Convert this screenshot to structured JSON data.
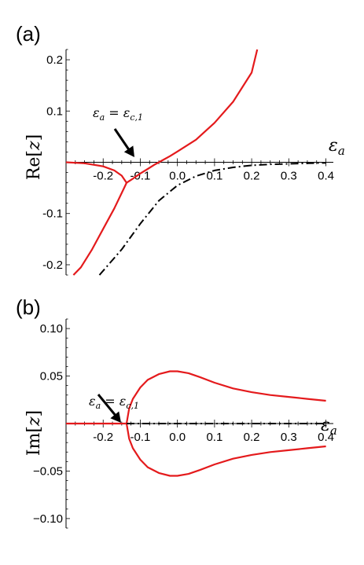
{
  "chart_data": [
    {
      "type": "line",
      "panel_label": "(a)",
      "ylabel": "Re[z]",
      "xlabel": "εa",
      "xlim": [
        -0.3,
        0.42
      ],
      "ylim": [
        -0.22,
        0.22
      ],
      "xticks": [
        -0.2,
        -0.1,
        0.0,
        0.1,
        0.2,
        0.3,
        0.4
      ],
      "xtick_labels": [
        "-0.2",
        "-0.1",
        "0.0",
        "0.1",
        "0.2",
        "0.3",
        "0.4"
      ],
      "yticks": [
        0.2,
        0.1,
        -0.1,
        -0.2
      ],
      "ytick_labels": [
        "0.2",
        "0.1",
        "-0.1",
        "-0.2"
      ],
      "annotation": {
        "text": "εa = εc,1",
        "x": -0.137,
        "y": 0.0
      },
      "series": [
        {
          "style": "solid",
          "color": "#e41a1c",
          "x": [
            -0.3,
            -0.25,
            -0.2,
            -0.17,
            -0.15,
            -0.137
          ],
          "y": [
            0.0,
            -0.002,
            -0.008,
            -0.016,
            -0.026,
            -0.04
          ]
        },
        {
          "style": "solid",
          "color": "#e41a1c",
          "x": [
            -0.137,
            -0.12,
            -0.1,
            -0.08,
            -0.06,
            -0.04,
            -0.02,
            0.0,
            0.05,
            0.1,
            0.15,
            0.2,
            0.215
          ],
          "y": [
            -0.04,
            -0.032,
            -0.022,
            -0.013,
            -0.004,
            0.004,
            0.012,
            0.021,
            0.044,
            0.077,
            0.118,
            0.175,
            0.22
          ]
        },
        {
          "style": "solid",
          "color": "#e41a1c",
          "x": [
            -0.137,
            -0.15,
            -0.17,
            -0.2,
            -0.23,
            -0.26,
            -0.28
          ],
          "y": [
            -0.04,
            -0.06,
            -0.09,
            -0.13,
            -0.17,
            -0.205,
            -0.22
          ]
        },
        {
          "style": "dashdot",
          "color": "#000000",
          "x": [
            -0.21,
            -0.15,
            -0.1,
            -0.05,
            0.0,
            0.05,
            0.1,
            0.15,
            0.2,
            0.25,
            0.3,
            0.35,
            0.4
          ],
          "y": [
            -0.22,
            -0.17,
            -0.12,
            -0.075,
            -0.045,
            -0.027,
            -0.016,
            -0.01,
            -0.006,
            -0.004,
            -0.003,
            -0.002,
            -0.001
          ]
        }
      ]
    },
    {
      "type": "line",
      "panel_label": "(b)",
      "ylabel": "Im[z]",
      "xlabel": "εa",
      "xlim": [
        -0.3,
        0.42
      ],
      "ylim": [
        -0.11,
        0.11
      ],
      "xticks": [
        -0.2,
        -0.1,
        0.0,
        0.1,
        0.2,
        0.3,
        0.4
      ],
      "xtick_labels": [
        "-0.2",
        "-0.1",
        "0.0",
        "0.1",
        "0.2",
        "0.3",
        "0.4"
      ],
      "yticks": [
        0.1,
        0.05,
        -0.05,
        -0.1
      ],
      "ytick_labels": [
        "0.10",
        "0.05",
        "−0.05",
        "−0.10"
      ],
      "annotation": {
        "text": "εa = εc,1",
        "x": -0.137,
        "y": 0.0
      },
      "series": [
        {
          "style": "solid",
          "color": "#e41a1c",
          "x": [
            -0.3,
            -0.137
          ],
          "y": [
            0.0,
            0.0
          ]
        },
        {
          "style": "solid",
          "color": "#e41a1c",
          "x": [
            -0.137,
            -0.13,
            -0.12,
            -0.1,
            -0.08,
            -0.05,
            -0.02,
            0.0,
            0.03,
            0.06,
            0.1,
            0.15,
            0.2,
            0.25,
            0.3,
            0.35,
            0.4
          ],
          "y": [
            0.0,
            0.016,
            0.026,
            0.038,
            0.046,
            0.052,
            0.055,
            0.055,
            0.053,
            0.049,
            0.043,
            0.037,
            0.033,
            0.03,
            0.028,
            0.026,
            0.024
          ]
        },
        {
          "style": "solid",
          "color": "#e41a1c",
          "x": [
            -0.137,
            -0.13,
            -0.12,
            -0.1,
            -0.08,
            -0.05,
            -0.02,
            0.0,
            0.03,
            0.06,
            0.1,
            0.15,
            0.2,
            0.25,
            0.3,
            0.35,
            0.4
          ],
          "y": [
            0.0,
            -0.016,
            -0.026,
            -0.038,
            -0.046,
            -0.052,
            -0.055,
            -0.055,
            -0.053,
            -0.049,
            -0.043,
            -0.037,
            -0.033,
            -0.03,
            -0.028,
            -0.026,
            -0.024
          ]
        },
        {
          "style": "dashdot",
          "color": "#000000",
          "x": [
            -0.137,
            0.4
          ],
          "y": [
            0.0,
            0.0
          ]
        }
      ]
    }
  ]
}
